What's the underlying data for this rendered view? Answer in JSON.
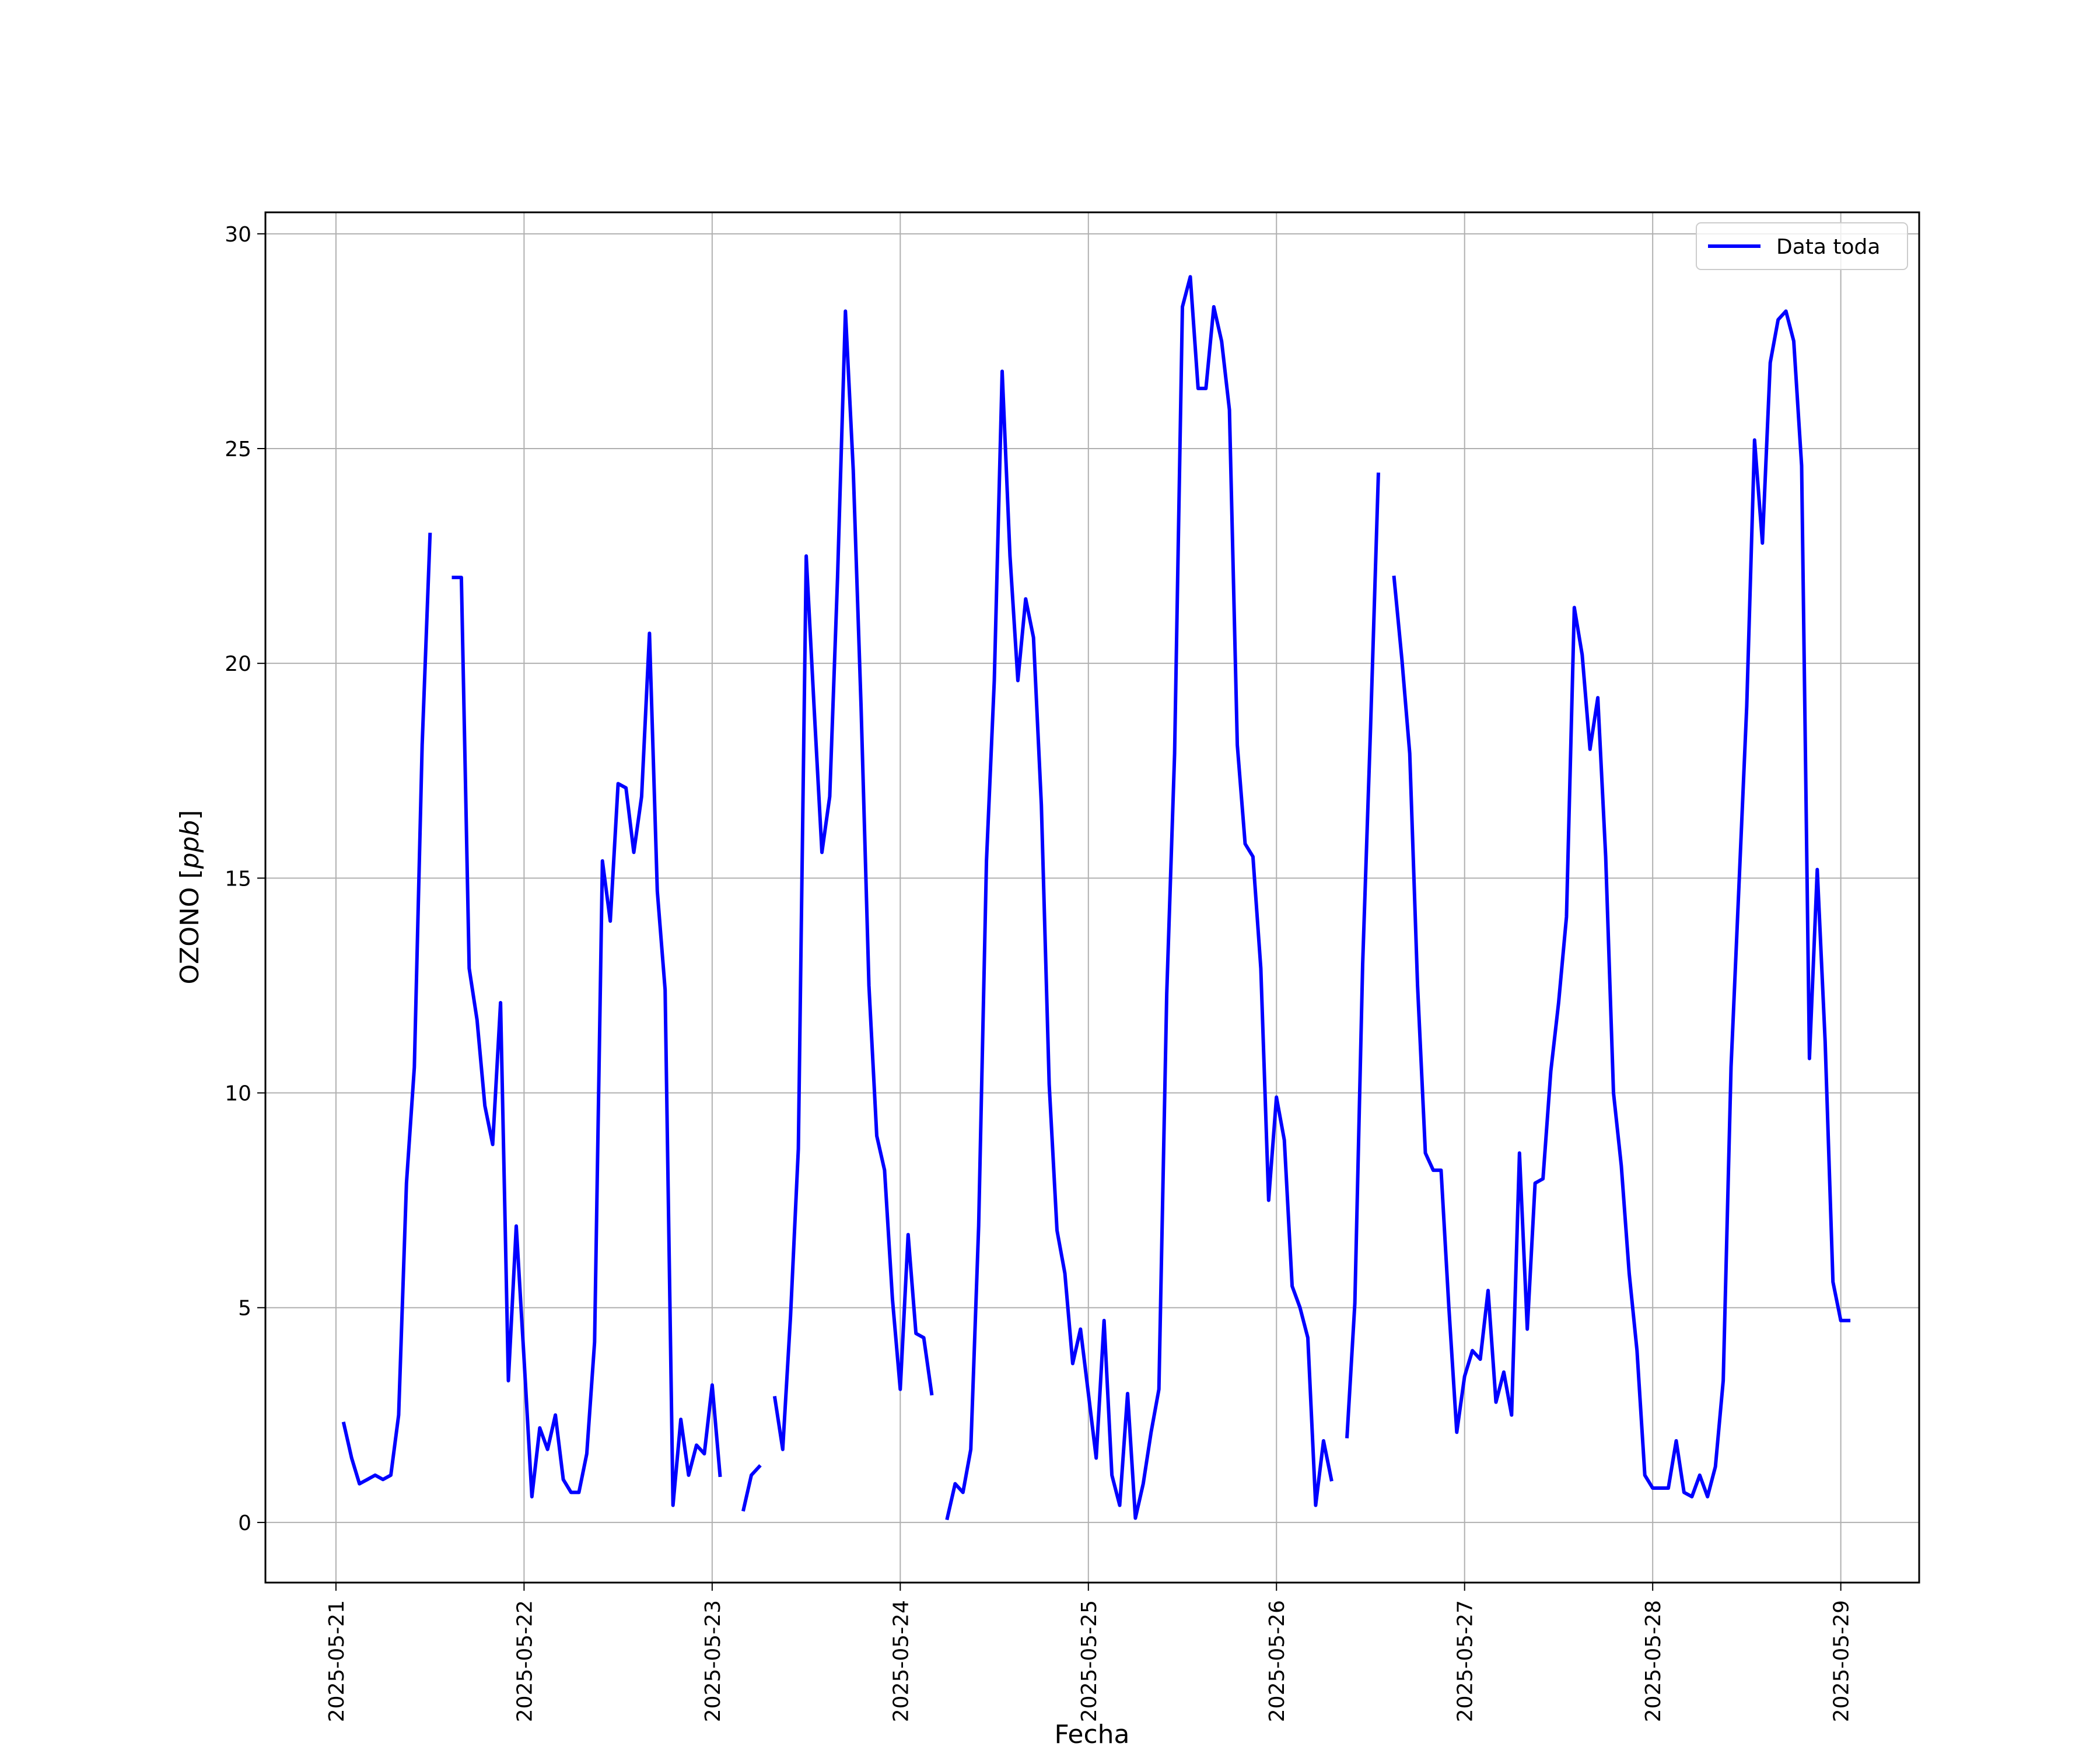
{
  "chart_data": {
    "type": "line",
    "xlabel": "Fecha",
    "ylabel": "OZONO",
    "ylabel_unit": "ppb",
    "xlim": [
      "2025-05-20 15:00",
      "2025-05-29 10:00"
    ],
    "ylim": [
      -1.4,
      30.5
    ],
    "x_ticks": [
      "2025-05-21",
      "2025-05-22",
      "2025-05-23",
      "2025-05-24",
      "2025-05-25",
      "2025-05-26",
      "2025-05-27",
      "2025-05-28",
      "2025-05-29"
    ],
    "y_ticks": [
      0,
      5,
      10,
      15,
      20,
      25,
      30
    ],
    "grid": true,
    "legend_position": "top-right",
    "series": [
      {
        "name": "Data toda",
        "color": "#0000ff",
        "segments": [
          [
            [
              "2025-05-21 01:00",
              2.3
            ],
            [
              "2025-05-21 02:00",
              1.5
            ],
            [
              "2025-05-21 03:00",
              0.9
            ],
            [
              "2025-05-21 04:00",
              1.0
            ],
            [
              "2025-05-21 05:00",
              1.1
            ],
            [
              "2025-05-21 06:00",
              1.0
            ],
            [
              "2025-05-21 07:00",
              1.1
            ],
            [
              "2025-05-21 08:00",
              2.5
            ],
            [
              "2025-05-21 09:00",
              7.9
            ],
            [
              "2025-05-21 10:00",
              10.6
            ],
            [
              "2025-05-21 11:00",
              18.1
            ],
            [
              "2025-05-21 12:00",
              23.0
            ]
          ],
          [
            [
              "2025-05-21 15:00",
              22.0
            ],
            [
              "2025-05-21 16:00",
              22.0
            ],
            [
              "2025-05-21 17:00",
              12.9
            ],
            [
              "2025-05-21 18:00",
              11.7
            ],
            [
              "2025-05-21 19:00",
              9.7
            ],
            [
              "2025-05-21 20:00",
              8.8
            ],
            [
              "2025-05-21 21:00",
              12.1
            ],
            [
              "2025-05-21 22:00",
              3.3
            ],
            [
              "2025-05-21 23:00",
              6.9
            ],
            [
              "2025-05-22 00:00",
              3.8
            ],
            [
              "2025-05-22 01:00",
              0.6
            ],
            [
              "2025-05-22 02:00",
              2.2
            ],
            [
              "2025-05-22 03:00",
              1.7
            ],
            [
              "2025-05-22 04:00",
              2.5
            ],
            [
              "2025-05-22 05:00",
              1.0
            ],
            [
              "2025-05-22 06:00",
              0.7
            ],
            [
              "2025-05-22 07:00",
              0.7
            ],
            [
              "2025-05-22 08:00",
              1.6
            ],
            [
              "2025-05-22 09:00",
              4.2
            ],
            [
              "2025-05-22 10:00",
              15.4
            ],
            [
              "2025-05-22 11:00",
              14.0
            ],
            [
              "2025-05-22 12:00",
              17.2
            ],
            [
              "2025-05-22 13:00",
              17.1
            ],
            [
              "2025-05-22 14:00",
              15.6
            ],
            [
              "2025-05-22 15:00",
              16.9
            ],
            [
              "2025-05-22 16:00",
              20.7
            ],
            [
              "2025-05-22 17:00",
              14.7
            ],
            [
              "2025-05-22 18:00",
              12.4
            ],
            [
              "2025-05-22 19:00",
              0.4
            ],
            [
              "2025-05-22 20:00",
              2.4
            ],
            [
              "2025-05-22 21:00",
              1.1
            ],
            [
              "2025-05-22 22:00",
              1.8
            ],
            [
              "2025-05-22 23:00",
              1.6
            ],
            [
              "2025-05-23 00:00",
              3.2
            ],
            [
              "2025-05-23 01:00",
              1.1
            ]
          ],
          [
            [
              "2025-05-23 04:00",
              0.3
            ],
            [
              "2025-05-23 05:00",
              1.1
            ],
            [
              "2025-05-23 06:00",
              1.3
            ]
          ],
          [
            [
              "2025-05-23 08:00",
              2.9
            ],
            [
              "2025-05-23 09:00",
              1.7
            ],
            [
              "2025-05-23 10:00",
              4.8
            ],
            [
              "2025-05-23 11:00",
              8.7
            ],
            [
              "2025-05-23 12:00",
              22.5
            ],
            [
              "2025-05-23 13:00",
              19.0
            ],
            [
              "2025-05-23 14:00",
              15.6
            ],
            [
              "2025-05-23 15:00",
              16.9
            ],
            [
              "2025-05-23 16:00",
              22.0
            ],
            [
              "2025-05-23 17:00",
              28.2
            ],
            [
              "2025-05-23 18:00",
              24.5
            ],
            [
              "2025-05-23 19:00",
              19.0
            ],
            [
              "2025-05-23 20:00",
              12.5
            ],
            [
              "2025-05-23 21:00",
              9.0
            ],
            [
              "2025-05-23 22:00",
              8.2
            ],
            [
              "2025-05-23 23:00",
              5.2
            ],
            [
              "2025-05-24 00:00",
              3.1
            ],
            [
              "2025-05-24 01:00",
              6.7
            ],
            [
              "2025-05-24 02:00",
              4.4
            ],
            [
              "2025-05-24 03:00",
              4.3
            ],
            [
              "2025-05-24 04:00",
              3.0
            ]
          ],
          [
            [
              "2025-05-24 06:00",
              0.1
            ],
            [
              "2025-05-24 07:00",
              0.9
            ],
            [
              "2025-05-24 08:00",
              0.7
            ],
            [
              "2025-05-24 09:00",
              1.7
            ],
            [
              "2025-05-24 10:00",
              6.9
            ],
            [
              "2025-05-24 11:00",
              15.4
            ],
            [
              "2025-05-24 12:00",
              19.6
            ],
            [
              "2025-05-24 13:00",
              26.8
            ],
            [
              "2025-05-24 14:00",
              22.5
            ],
            [
              "2025-05-24 15:00",
              19.6
            ],
            [
              "2025-05-24 16:00",
              21.5
            ],
            [
              "2025-05-24 17:00",
              20.6
            ],
            [
              "2025-05-24 18:00",
              16.7
            ],
            [
              "2025-05-24 19:00",
              10.2
            ],
            [
              "2025-05-24 20:00",
              6.8
            ],
            [
              "2025-05-24 21:00",
              5.8
            ],
            [
              "2025-05-24 22:00",
              3.7
            ],
            [
              "2025-05-24 23:00",
              4.5
            ],
            [
              "2025-05-25 00:00",
              3.0
            ],
            [
              "2025-05-25 01:00",
              1.5
            ],
            [
              "2025-05-25 02:00",
              4.7
            ],
            [
              "2025-05-25 03:00",
              1.1
            ],
            [
              "2025-05-25 04:00",
              0.4
            ],
            [
              "2025-05-25 05:00",
              3.0
            ],
            [
              "2025-05-25 06:00",
              0.1
            ],
            [
              "2025-05-25 07:00",
              0.9
            ],
            [
              "2025-05-25 08:00",
              2.1
            ],
            [
              "2025-05-25 09:00",
              3.1
            ],
            [
              "2025-05-25 10:00",
              12.3
            ],
            [
              "2025-05-25 11:00",
              17.9
            ],
            [
              "2025-05-25 12:00",
              28.3
            ],
            [
              "2025-05-25 13:00",
              29.0
            ],
            [
              "2025-05-25 14:00",
              26.4
            ],
            [
              "2025-05-25 15:00",
              26.4
            ],
            [
              "2025-05-25 16:00",
              28.3
            ],
            [
              "2025-05-25 17:00",
              27.5
            ],
            [
              "2025-05-25 18:00",
              25.9
            ],
            [
              "2025-05-25 19:00",
              18.1
            ],
            [
              "2025-05-25 20:00",
              15.8
            ],
            [
              "2025-05-25 21:00",
              15.5
            ],
            [
              "2025-05-25 22:00",
              12.9
            ],
            [
              "2025-05-25 23:00",
              7.5
            ],
            [
              "2025-05-26 00:00",
              9.9
            ],
            [
              "2025-05-26 01:00",
              8.9
            ],
            [
              "2025-05-26 02:00",
              5.5
            ],
            [
              "2025-05-26 03:00",
              5.0
            ],
            [
              "2025-05-26 04:00",
              4.3
            ],
            [
              "2025-05-26 05:00",
              0.4
            ],
            [
              "2025-05-26 06:00",
              1.9
            ],
            [
              "2025-05-26 07:00",
              1.0
            ]
          ],
          [
            [
              "2025-05-26 09:00",
              2.0
            ],
            [
              "2025-05-26 10:00",
              5.1
            ],
            [
              "2025-05-26 11:00",
              13.0
            ],
            [
              "2025-05-26 12:00",
              18.5
            ],
            [
              "2025-05-26 13:00",
              24.4
            ]
          ],
          [
            [
              "2025-05-26 15:00",
              22.0
            ],
            [
              "2025-05-26 16:00",
              20.1
            ],
            [
              "2025-05-26 17:00",
              17.9
            ],
            [
              "2025-05-26 18:00",
              12.5
            ],
            [
              "2025-05-26 19:00",
              8.6
            ],
            [
              "2025-05-26 20:00",
              8.2
            ],
            [
              "2025-05-26 21:00",
              8.2
            ],
            [
              "2025-05-26 22:00",
              5.0
            ],
            [
              "2025-05-26 23:00",
              2.1
            ],
            [
              "2025-05-27 00:00",
              3.4
            ],
            [
              "2025-05-27 01:00",
              4.0
            ],
            [
              "2025-05-27 02:00",
              3.8
            ],
            [
              "2025-05-27 03:00",
              5.4
            ],
            [
              "2025-05-27 04:00",
              2.8
            ],
            [
              "2025-05-27 05:00",
              3.5
            ],
            [
              "2025-05-27 06:00",
              2.5
            ],
            [
              "2025-05-27 07:00",
              8.6
            ],
            [
              "2025-05-27 08:00",
              4.5
            ],
            [
              "2025-05-27 09:00",
              7.9
            ],
            [
              "2025-05-27 10:00",
              8.0
            ],
            [
              "2025-05-27 11:00",
              10.5
            ],
            [
              "2025-05-27 12:00",
              12.1
            ],
            [
              "2025-05-27 13:00",
              14.1
            ],
            [
              "2025-05-27 14:00",
              21.3
            ],
            [
              "2025-05-27 15:00",
              20.2
            ],
            [
              "2025-05-27 16:00",
              18.0
            ],
            [
              "2025-05-27 17:00",
              19.2
            ],
            [
              "2025-05-27 18:00",
              15.5
            ],
            [
              "2025-05-27 19:00",
              10.0
            ],
            [
              "2025-05-27 20:00",
              8.3
            ],
            [
              "2025-05-27 21:00",
              5.8
            ],
            [
              "2025-05-27 22:00",
              4.0
            ],
            [
              "2025-05-27 23:00",
              1.1
            ],
            [
              "2025-05-28 00:00",
              0.8
            ],
            [
              "2025-05-28 01:00",
              0.8
            ],
            [
              "2025-05-28 02:00",
              0.8
            ],
            [
              "2025-05-28 03:00",
              1.9
            ],
            [
              "2025-05-28 04:00",
              0.7
            ],
            [
              "2025-05-28 05:00",
              0.6
            ],
            [
              "2025-05-28 06:00",
              1.1
            ],
            [
              "2025-05-28 07:00",
              0.6
            ],
            [
              "2025-05-28 08:00",
              1.3
            ],
            [
              "2025-05-28 09:00",
              3.3
            ],
            [
              "2025-05-28 10:00",
              10.6
            ],
            [
              "2025-05-28 11:00",
              14.8
            ],
            [
              "2025-05-28 12:00",
              19.0
            ],
            [
              "2025-05-28 13:00",
              25.2
            ],
            [
              "2025-05-28 14:00",
              22.8
            ],
            [
              "2025-05-28 15:00",
              27.0
            ],
            [
              "2025-05-28 16:00",
              28.0
            ],
            [
              "2025-05-28 17:00",
              28.2
            ],
            [
              "2025-05-28 18:00",
              27.5
            ],
            [
              "2025-05-28 19:00",
              24.6
            ],
            [
              "2025-05-28 20:00",
              10.8
            ],
            [
              "2025-05-28 21:00",
              15.2
            ],
            [
              "2025-05-28 22:00",
              11.2
            ],
            [
              "2025-05-28 23:00",
              5.6
            ],
            [
              "2025-05-29 00:00",
              4.7
            ],
            [
              "2025-05-29 01:00",
              4.7
            ]
          ]
        ]
      }
    ]
  }
}
